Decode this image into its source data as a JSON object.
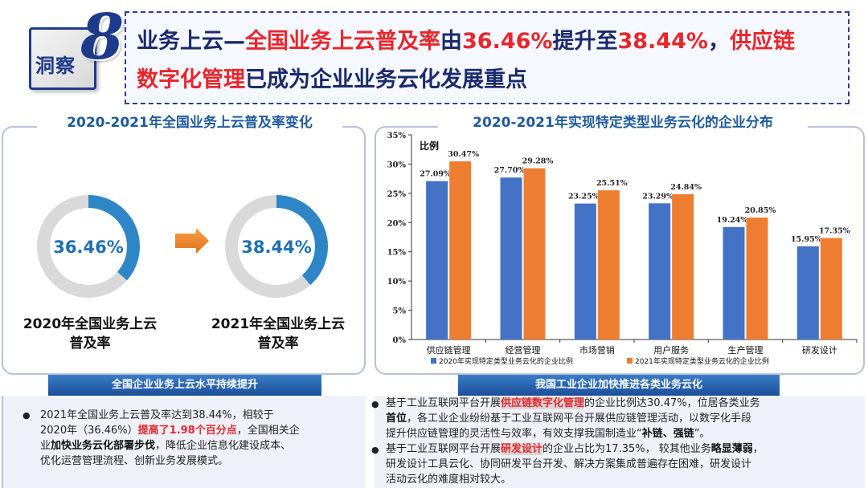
{
  "header": {
    "badge_text": "洞察",
    "badge_num": "8",
    "t1": "业务上云—",
    "t2": "全国业务上云普及率",
    "t3": "由",
    "t4": "36.46%",
    "t5": "提升至",
    "t6": "38.44%",
    "t7": "，",
    "t8": "供应链",
    "t9": "数字化管理",
    "t10": "已成为企业业务云化发展重点"
  },
  "left": {
    "title": "2020-2021年全国业务上云普及率变化",
    "donut_2020": {
      "value": 36.46,
      "label": "36.46%",
      "caption": "2020年全国业务上云普及率"
    },
    "donut_2021": {
      "value": 38.44,
      "label": "38.44%",
      "caption": "2021年全国业务上云普及率"
    },
    "cap1a": "2020年全国业务上云",
    "cap1b": "普及率",
    "cap2a": "2021年全国业务上云",
    "cap2b": "普及率",
    "colors": {
      "fill": "#2e86c6",
      "track": "#d9d9d9"
    }
  },
  "chart_data": {
    "type": "bar",
    "title": "2020-2021年实现特定类型业务云化的企业分布",
    "ylabel": "比例",
    "categories": [
      "供应链管理",
      "经营管理",
      "市场营销",
      "用户服务",
      "生产管理",
      "研发设计"
    ],
    "series": [
      {
        "name": "2020年实现特定类型业务云化的企业比例",
        "values": [
          27.09,
          27.7,
          23.25,
          23.29,
          19.24,
          15.95
        ],
        "labels": [
          "27.09%",
          "27.70%",
          "23.25%",
          "23.29%",
          "19.24%",
          "15.95%"
        ],
        "color": "#4472c4"
      },
      {
        "name": "2021年实现特定类型业务云化的企业比例",
        "values": [
          30.47,
          29.28,
          25.51,
          24.84,
          20.85,
          17.35
        ],
        "labels": [
          "30.47%",
          "29.28%",
          "25.51%",
          "24.84%",
          "20.85%",
          "17.35%"
        ],
        "color": "#ed7d31"
      }
    ],
    "ylim": [
      0,
      35
    ],
    "yticks": [
      "0%",
      "5%",
      "10%",
      "15%",
      "20%",
      "25%",
      "30%",
      "35%"
    ],
    "legend": "bottom",
    "grid": false
  },
  "bottom_left": {
    "head": "全国企业业务上云水平持续提升",
    "b1": "2021年全国业务上云普及率达到38.44%，相较于",
    "b2a": "2020年（36.46%）",
    "b2b": "提高了1.98个百分点",
    "b2c": "，全国相关企",
    "b3a": "业",
    "b3b": "加快业务云化部署步伐",
    "b3c": "，降低企业信息化建设成本、",
    "b4": "优化运营管理流程、创新业务发展模式。"
  },
  "bottom_right": {
    "head": "我国工业企业加快推进各类业务云化",
    "p1a": "基于工业互联网平台开展",
    "p1b": "供应链数字化管理",
    "p1c": "的企业比例达30.47%，位居各类业务",
    "p2a": "首位",
    "p2b": "，各工业企业纷纷基于工业互联网平台开展供应链管理活动，以数字化手段",
    "p3a": "提升供应链管理的灵活性与效率，有效支撑我国制造业“",
    "p3b": "补链、强链",
    "p3c": "”。",
    "q1a": "基于工业互联网平台开展",
    "q1b": "研发设计",
    "q1c": "的企业占比为17.35%， 较其他业务",
    "q1d": "略显薄弱",
    "q1e": "，",
    "q2": "研发设计工具云化、协同研发平台开发、解决方案集成普遍存在困难，研发设计",
    "q3": "活动云化的难度相对较大。"
  }
}
